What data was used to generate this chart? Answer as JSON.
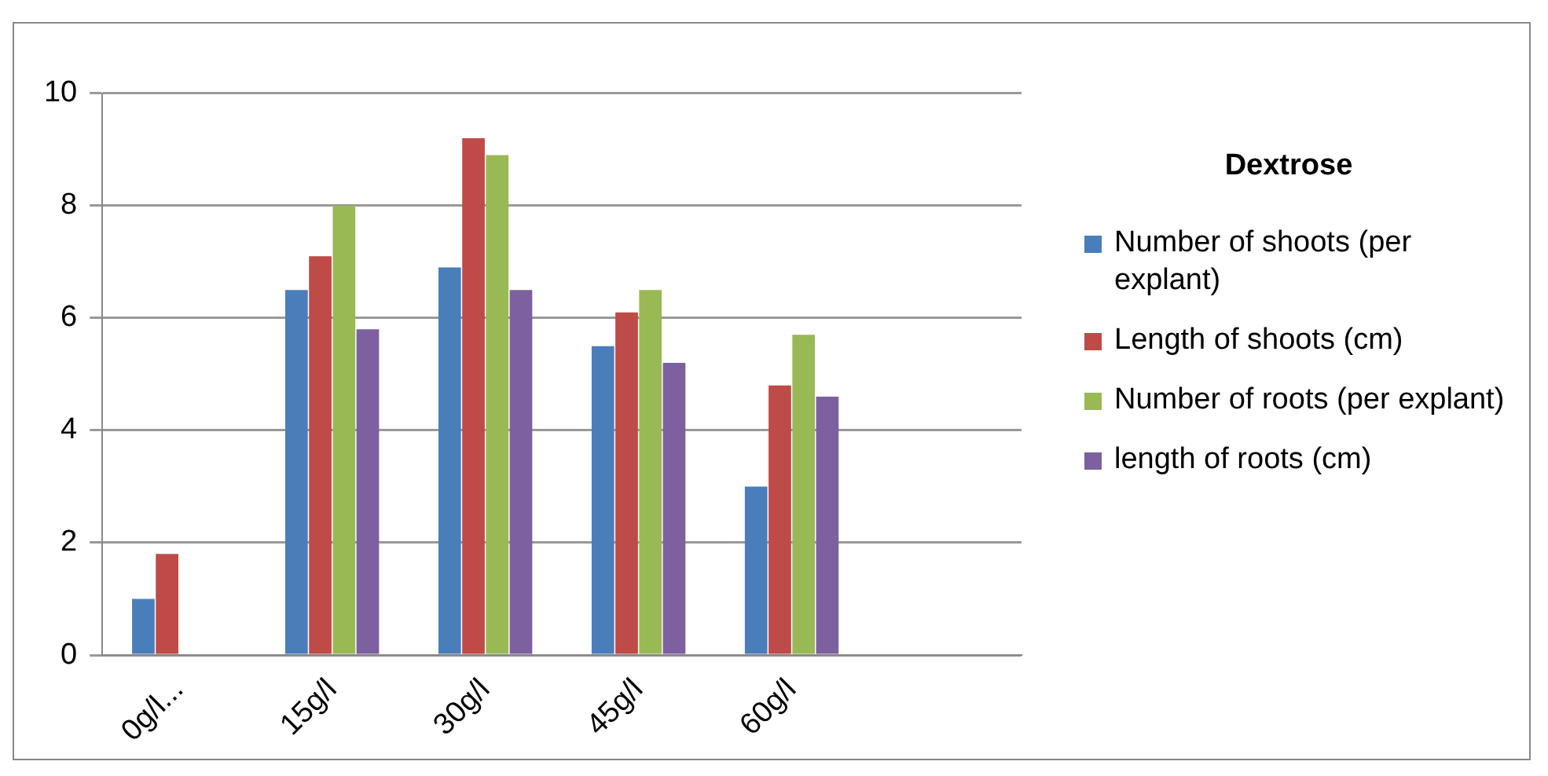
{
  "chart_data": {
    "type": "bar",
    "legend_title": "Dextrose",
    "categories": [
      "0g/l...",
      "15g/l",
      "30g/l",
      "45g/l",
      "60g/l",
      null
    ],
    "series": [
      {
        "name": "Number of shoots (per explant)",
        "color": "#4a7ebb",
        "values": [
          1.0,
          6.5,
          6.9,
          5.5,
          3.0,
          null
        ]
      },
      {
        "name": "Length of shoots (cm)",
        "color": "#be4b48",
        "values": [
          1.8,
          7.1,
          9.2,
          6.1,
          4.8,
          null
        ]
      },
      {
        "name": "Number of roots (per explant)",
        "color": "#98b954",
        "values": [
          0,
          8.0,
          8.9,
          6.5,
          5.7,
          null
        ]
      },
      {
        "name": "length of roots (cm)",
        "color": "#7d60a0",
        "values": [
          0,
          5.8,
          6.5,
          5.2,
          4.6,
          null
        ]
      }
    ],
    "ylim": [
      0,
      10
    ],
    "yticks": [
      0,
      2,
      4,
      6,
      8,
      10
    ],
    "grid": "y",
    "legend": "right"
  }
}
